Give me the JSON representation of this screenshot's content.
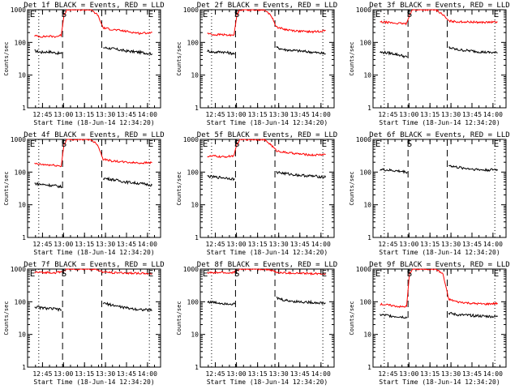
{
  "figure": {
    "background": "#ffffff",
    "colors": {
      "events": "#000000",
      "lld": "#ff0000",
      "axes": "#000000"
    }
  },
  "chart_data": [
    {
      "type": "line",
      "title": "Det 1f BLACK = Events, RED = LLD",
      "xlabel": "Start Time (18-Jun-14 12:34:20)",
      "ylabel": "Counts/sec",
      "xticks": [
        "12:45",
        "13:00",
        "13:15",
        "13:30",
        "13:45",
        "14:00"
      ],
      "xtick_minutes": [
        10.67,
        25.67,
        40.67,
        55.67,
        70.67,
        85.67
      ],
      "xlim_minutes": [
        0,
        95
      ],
      "ylim": [
        1,
        1000
      ],
      "yscale": "log",
      "yticks": [
        "1",
        "10",
        "100",
        "1000"
      ],
      "markers": [
        {
          "label": "E",
          "t": 3.5
        },
        {
          "label": "S",
          "t": 26
        },
        {
          "label": "E",
          "t": 88
        }
      ],
      "dotted_lines_minutes": [
        8,
        87
      ],
      "dashed_lines_minutes": [
        25,
        53
      ],
      "series": [
        {
          "name": "Events",
          "color": "#000000",
          "x": [
            5,
            10,
            15,
            20,
            24.5,
            null,
            54,
            60,
            70,
            80,
            89
          ],
          "y": [
            55,
            50,
            52,
            48,
            45,
            null,
            70,
            65,
            55,
            50,
            45
          ]
        },
        {
          "name": "LLD",
          "color": "#ff0000",
          "x": [
            5,
            10,
            15,
            20,
            24,
            26,
            28,
            35,
            45,
            50,
            54,
            60,
            70,
            80,
            89
          ],
          "y": [
            160,
            150,
            155,
            150,
            165,
            700,
            1000,
            1000,
            1000,
            700,
            280,
            250,
            220,
            190,
            200
          ]
        }
      ]
    },
    {
      "type": "line",
      "title": "Det 2f BLACK = Events, RED = LLD",
      "xlabel": "Start Time (18-Jun-14 12:34:20)",
      "ylabel": "Counts/sec",
      "xticks": [
        "12:45",
        "13:00",
        "13:15",
        "13:30",
        "13:45",
        "14:00"
      ],
      "xtick_minutes": [
        10.67,
        25.67,
        40.67,
        55.67,
        70.67,
        85.67
      ],
      "xlim_minutes": [
        0,
        95
      ],
      "ylim": [
        1,
        1000
      ],
      "yscale": "log",
      "yticks": [
        "1",
        "10",
        "100",
        "1000"
      ],
      "markers": [
        {
          "label": "E",
          "t": 3.5
        },
        {
          "label": "S",
          "t": 26
        },
        {
          "label": "E",
          "t": 88
        }
      ],
      "dotted_lines_minutes": [
        8,
        87
      ],
      "dashed_lines_minutes": [
        25,
        53
      ],
      "series": [
        {
          "name": "Events",
          "color": "#000000",
          "x": [
            5,
            10,
            15,
            20,
            24.5,
            null,
            54,
            60,
            70,
            80,
            89
          ],
          "y": [
            55,
            50,
            52,
            48,
            45,
            null,
            70,
            60,
            55,
            50,
            45
          ]
        },
        {
          "name": "LLD",
          "color": "#ff0000",
          "x": [
            5,
            10,
            15,
            20,
            24,
            26,
            28,
            35,
            45,
            50,
            54,
            60,
            70,
            80,
            89
          ],
          "y": [
            190,
            170,
            175,
            165,
            175,
            700,
            1000,
            1000,
            1000,
            700,
            300,
            250,
            220,
            210,
            230
          ]
        }
      ]
    },
    {
      "type": "line",
      "title": "Det 3f BLACK = Events, RED = LLD",
      "xlabel": "Start Time (18-Jun-14 12:34:20)",
      "ylabel": "Counts/sec",
      "xticks": [
        "12:45",
        "13:00",
        "13:15",
        "13:30",
        "13:45",
        "14:00"
      ],
      "xtick_minutes": [
        10.67,
        25.67,
        40.67,
        55.67,
        70.67,
        85.67
      ],
      "xlim_minutes": [
        0,
        95
      ],
      "ylim": [
        1,
        1000
      ],
      "yscale": "log",
      "yticks": [
        "1",
        "10",
        "100",
        "1000"
      ],
      "markers": [
        {
          "label": "E",
          "t": 3.5
        },
        {
          "label": "S",
          "t": 26
        },
        {
          "label": "E",
          "t": 88
        }
      ],
      "dotted_lines_minutes": [
        8,
        87
      ],
      "dashed_lines_minutes": [
        25,
        53
      ],
      "series": [
        {
          "name": "Events",
          "color": "#000000",
          "x": [
            5,
            10,
            15,
            20,
            24.5,
            null,
            54,
            60,
            70,
            80,
            89
          ],
          "y": [
            50,
            48,
            45,
            40,
            35,
            null,
            70,
            60,
            55,
            50,
            48
          ]
        },
        {
          "name": "LLD",
          "color": "#ff0000",
          "x": [
            5,
            10,
            15,
            20,
            24,
            26,
            28,
            35,
            45,
            50,
            54,
            60,
            70,
            80,
            89
          ],
          "y": [
            420,
            410,
            390,
            380,
            370,
            700,
            1000,
            1000,
            1000,
            700,
            450,
            430,
            420,
            410,
            420
          ]
        }
      ]
    },
    {
      "type": "line",
      "title": "Det 4f BLACK = Events, RED = LLD",
      "xlabel": "Start Time (18-Jun-14 12:34:20)",
      "ylabel": "Counts/sec",
      "xticks": [
        "12:45",
        "13:00",
        "13:15",
        "13:30",
        "13:45",
        "14:00"
      ],
      "xtick_minutes": [
        10.67,
        25.67,
        40.67,
        55.67,
        70.67,
        85.67
      ],
      "xlim_minutes": [
        0,
        95
      ],
      "ylim": [
        1,
        1000
      ],
      "yscale": "log",
      "yticks": [
        "1",
        "10",
        "100",
        "1000"
      ],
      "markers": [
        {
          "label": "E",
          "t": 3.5
        },
        {
          "label": "S",
          "t": 26
        },
        {
          "label": "E",
          "t": 88
        }
      ],
      "dotted_lines_minutes": [
        8,
        87
      ],
      "dashed_lines_minutes": [
        25,
        53
      ],
      "series": [
        {
          "name": "Events",
          "color": "#000000",
          "x": [
            5,
            10,
            15,
            20,
            24.5,
            null,
            54,
            60,
            70,
            80,
            89
          ],
          "y": [
            45,
            42,
            40,
            38,
            35,
            null,
            65,
            60,
            50,
            45,
            40
          ]
        },
        {
          "name": "LLD",
          "color": "#ff0000",
          "x": [
            5,
            10,
            15,
            20,
            24,
            26,
            28,
            35,
            45,
            50,
            54,
            60,
            70,
            80,
            89
          ],
          "y": [
            180,
            170,
            165,
            160,
            150,
            700,
            1000,
            1000,
            1000,
            700,
            250,
            220,
            200,
            190,
            195
          ]
        }
      ]
    },
    {
      "type": "line",
      "title": "Det 5f BLACK = Events, RED = LLD",
      "xlabel": "Start Time (18-Jun-14 12:34:20)",
      "ylabel": "Counts/sec",
      "xticks": [
        "12:45",
        "13:00",
        "13:15",
        "13:30",
        "13:45",
        "14:00"
      ],
      "xtick_minutes": [
        10.67,
        25.67,
        40.67,
        55.67,
        70.67,
        85.67
      ],
      "xlim_minutes": [
        0,
        95
      ],
      "ylim": [
        1,
        1000
      ],
      "yscale": "log",
      "yticks": [
        "1",
        "10",
        "100",
        "1000"
      ],
      "markers": [
        {
          "label": "E",
          "t": 3.5
        },
        {
          "label": "S",
          "t": 26
        },
        {
          "label": "E",
          "t": 88
        }
      ],
      "dotted_lines_minutes": [
        8,
        87
      ],
      "dashed_lines_minutes": [
        25,
        53
      ],
      "series": [
        {
          "name": "Events",
          "color": "#000000",
          "x": [
            5,
            10,
            15,
            20,
            24.5,
            null,
            54,
            60,
            70,
            80,
            89
          ],
          "y": [
            75,
            70,
            68,
            65,
            60,
            null,
            100,
            90,
            80,
            75,
            70
          ]
        },
        {
          "name": "LLD",
          "color": "#ff0000",
          "x": [
            5,
            10,
            15,
            20,
            24,
            26,
            28,
            35,
            45,
            50,
            54,
            60,
            70,
            80,
            89
          ],
          "y": [
            300,
            310,
            290,
            300,
            320,
            700,
            1000,
            1000,
            1000,
            700,
            450,
            400,
            360,
            330,
            350
          ]
        }
      ]
    },
    {
      "type": "line",
      "title": "Det 6f BLACK = Events, RED = LLD",
      "xlabel": "Start Time (18-Jun-14 12:34:20)",
      "ylabel": "Counts/sec",
      "xticks": [
        "12:45",
        "13:00",
        "13:15",
        "13:30",
        "13:45",
        "14:00"
      ],
      "xtick_minutes": [
        10.67,
        25.67,
        40.67,
        55.67,
        70.67,
        85.67
      ],
      "xlim_minutes": [
        0,
        95
      ],
      "ylim": [
        1,
        1000
      ],
      "yscale": "log",
      "yticks": [
        "1",
        "10",
        "100",
        "1000"
      ],
      "markers": [
        {
          "label": "E",
          "t": 3.5
        },
        {
          "label": "S",
          "t": 26
        },
        {
          "label": "E",
          "t": 88
        }
      ],
      "dotted_lines_minutes": [
        8,
        87
      ],
      "dashed_lines_minutes": [
        25,
        53
      ],
      "series": [
        {
          "name": "Events",
          "color": "#000000",
          "x": [
            5,
            10,
            15,
            20,
            24.5,
            null,
            54,
            60,
            70,
            80,
            89
          ],
          "y": [
            120,
            115,
            110,
            105,
            100,
            null,
            160,
            140,
            125,
            115,
            120
          ]
        },
        {
          "name": "LLD",
          "color": "#ff0000",
          "x": [],
          "y": []
        }
      ]
    },
    {
      "type": "line",
      "title": "Det 7f BLACK = Events, RED = LLD",
      "xlabel": "Start Time (18-Jun-14 12:34:20)",
      "ylabel": "Counts/sec",
      "xticks": [
        "12:45",
        "13:00",
        "13:15",
        "13:30",
        "13:45",
        "14:00"
      ],
      "xtick_minutes": [
        10.67,
        25.67,
        40.67,
        55.67,
        70.67,
        85.67
      ],
      "xlim_minutes": [
        0,
        95
      ],
      "ylim": [
        1,
        1000
      ],
      "yscale": "log",
      "yticks": [
        "1",
        "10",
        "100",
        "1000"
      ],
      "markers": [
        {
          "label": "E",
          "t": 3.5
        },
        {
          "label": "S",
          "t": 26
        },
        {
          "label": "E",
          "t": 88
        }
      ],
      "dotted_lines_minutes": [
        8,
        87
      ],
      "dashed_lines_minutes": [
        25,
        53
      ],
      "series": [
        {
          "name": "Events",
          "color": "#000000",
          "x": [
            5,
            10,
            15,
            20,
            24.5,
            null,
            54,
            60,
            70,
            80,
            89
          ],
          "y": [
            70,
            65,
            62,
            60,
            55,
            null,
            90,
            80,
            65,
            58,
            55
          ]
        },
        {
          "name": "LLD",
          "color": "#ff0000",
          "x": [
            5,
            10,
            15,
            20,
            24,
            26,
            28,
            35,
            45,
            50,
            54,
            60,
            70,
            80,
            89
          ],
          "y": [
            800,
            780,
            790,
            770,
            820,
            900,
            1000,
            1000,
            1000,
            950,
            800,
            780,
            760,
            740,
            720
          ]
        }
      ]
    },
    {
      "type": "line",
      "title": "Det 8f BLACK = Events, RED = LLD",
      "xlabel": "Start Time (18-Jun-14 12:34:20)",
      "ylabel": "Counts/sec",
      "xticks": [
        "12:45",
        "13:00",
        "13:15",
        "13:30",
        "13:45",
        "14:00"
      ],
      "xtick_minutes": [
        10.67,
        25.67,
        40.67,
        55.67,
        70.67,
        85.67
      ],
      "xlim_minutes": [
        0,
        95
      ],
      "ylim": [
        1,
        1000
      ],
      "yscale": "log",
      "yticks": [
        "1",
        "10",
        "100",
        "1000"
      ],
      "markers": [
        {
          "label": "E",
          "t": 3.5
        },
        {
          "label": "S",
          "t": 26
        },
        {
          "label": "E",
          "t": 88
        }
      ],
      "dotted_lines_minutes": [
        8,
        87
      ],
      "dashed_lines_minutes": [
        25,
        53
      ],
      "series": [
        {
          "name": "Events",
          "color": "#000000",
          "x": [
            5,
            10,
            15,
            20,
            24.5,
            null,
            54,
            60,
            70,
            80,
            89
          ],
          "y": [
            100,
            95,
            90,
            88,
            85,
            null,
            130,
            110,
            100,
            95,
            90
          ]
        },
        {
          "name": "LLD",
          "color": "#ff0000",
          "x": [
            5,
            10,
            15,
            20,
            24,
            26,
            28,
            35,
            45,
            50,
            54,
            60,
            70,
            80,
            89
          ],
          "y": [
            780,
            760,
            790,
            750,
            800,
            900,
            1000,
            1000,
            1000,
            950,
            780,
            760,
            740,
            730,
            720
          ]
        }
      ]
    },
    {
      "type": "line",
      "title": "Det 9f BLACK = Events, RED = LLD",
      "xlabel": "Start Time (18-Jun-14 12:34:20)",
      "ylabel": "Counts/sec",
      "xticks": [
        "12:45",
        "13:00",
        "13:15",
        "13:30",
        "13:45",
        "14:00"
      ],
      "xtick_minutes": [
        10.67,
        25.67,
        40.67,
        55.67,
        70.67,
        85.67
      ],
      "xlim_minutes": [
        0,
        95
      ],
      "ylim": [
        1,
        1000
      ],
      "yscale": "log",
      "yticks": [
        "1",
        "10",
        "100",
        "1000"
      ],
      "markers": [
        {
          "label": "E",
          "t": 3.5
        },
        {
          "label": "S",
          "t": 26
        },
        {
          "label": "E",
          "t": 88
        }
      ],
      "dotted_lines_minutes": [
        8,
        87
      ],
      "dashed_lines_minutes": [
        25,
        53
      ],
      "series": [
        {
          "name": "Events",
          "color": "#000000",
          "x": [
            5,
            10,
            15,
            20,
            24.5,
            null,
            54,
            60,
            70,
            80,
            89
          ],
          "y": [
            40,
            38,
            36,
            35,
            33,
            null,
            45,
            40,
            38,
            36,
            35
          ]
        },
        {
          "name": "LLD",
          "color": "#ff0000",
          "x": [
            5,
            10,
            15,
            20,
            24,
            26,
            28,
            35,
            45,
            50,
            54,
            60,
            70,
            80,
            89
          ],
          "y": [
            85,
            80,
            75,
            70,
            72,
            700,
            1000,
            1000,
            1000,
            700,
            120,
            100,
            90,
            85,
            90
          ]
        }
      ]
    }
  ]
}
